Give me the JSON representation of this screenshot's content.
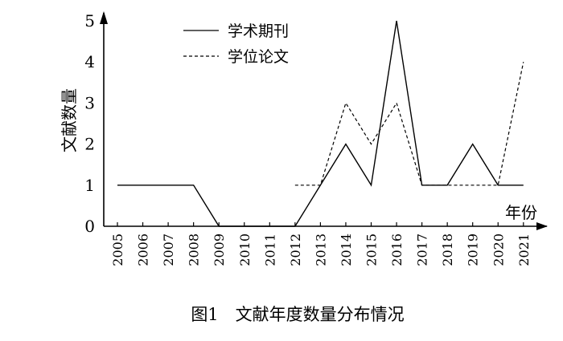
{
  "chart_data": {
    "type": "line",
    "title": "",
    "caption": "图1　文献年度数量分布情况",
    "xlabel": "年份",
    "ylabel": "文献数量",
    "categories": [
      "2005",
      "2006",
      "2007",
      "2008",
      "2009",
      "2010",
      "2011",
      "2012",
      "2013",
      "2014",
      "2015",
      "2016",
      "2017",
      "2018",
      "2019",
      "2020",
      "2021"
    ],
    "ylim": [
      0,
      5
    ],
    "yticks": [
      "0",
      "1",
      "2",
      "3",
      "4",
      "5"
    ],
    "grid": false,
    "legend_position": "top-center",
    "series": [
      {
        "name": "学术期刊",
        "style": "solid",
        "color": "#000000",
        "values": [
          1,
          1,
          1,
          1,
          0,
          0,
          0,
          0,
          1,
          2,
          1,
          5,
          1,
          1,
          2,
          1,
          1
        ]
      },
      {
        "name": "学位论文",
        "style": "dashed",
        "color": "#000000",
        "values": [
          null,
          null,
          null,
          null,
          null,
          null,
          null,
          1,
          1,
          3,
          2,
          3,
          1,
          1,
          1,
          1,
          4
        ]
      }
    ]
  }
}
